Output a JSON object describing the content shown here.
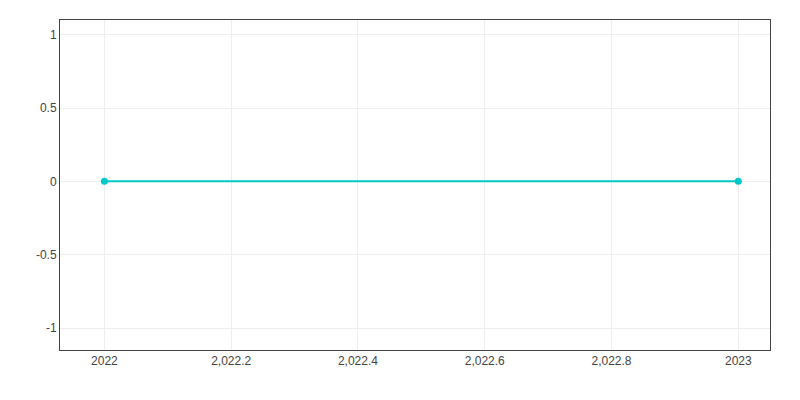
{
  "chart_data": {
    "type": "line",
    "x": [
      2022,
      2023
    ],
    "values": [
      0,
      0
    ],
    "color": "#00c8c8",
    "marker": "circle",
    "xlim": [
      2021.93,
      2023.05
    ],
    "xticks": [
      2022,
      {
        "value": 2022.2,
        "label": "2,022.2"
      },
      {
        "value": 2022.4,
        "label": "2,022.4"
      },
      {
        "value": 2022.6,
        "label": "2,022.6"
      },
      {
        "value": 2022.8,
        "label": "2,022.8"
      },
      2023
    ],
    "ylim": [
      -1.15,
      1.1
    ],
    "yticks": [
      -1,
      -0.5,
      0,
      0.5,
      1
    ],
    "grid": true
  }
}
